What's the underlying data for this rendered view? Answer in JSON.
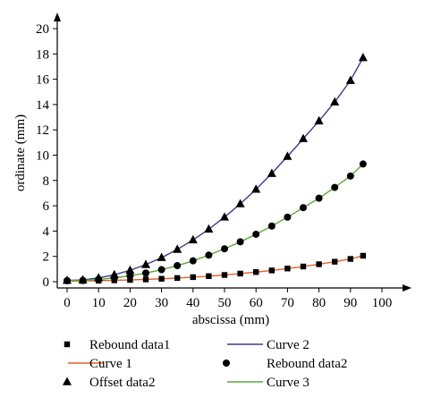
{
  "chart_data": {
    "type": "scatter",
    "xlabel": "abscissa (mm)",
    "ylabel": "ordinate (mm)",
    "xlim": [
      0,
      100
    ],
    "ylim": [
      0,
      20
    ],
    "xticks": [
      0,
      10,
      20,
      30,
      40,
      50,
      60,
      70,
      80,
      90,
      100
    ],
    "yticks": [
      0,
      2,
      4,
      6,
      8,
      10,
      12,
      14,
      16,
      18,
      20
    ],
    "grid": false,
    "legend_position": "bottom",
    "x": [
      0,
      5,
      10,
      15,
      20,
      25,
      30,
      35,
      40,
      45,
      50,
      55,
      60,
      65,
      70,
      75,
      80,
      85,
      90,
      94
    ],
    "series": [
      {
        "name": "Rebound data1",
        "kind": "points",
        "marker": "square",
        "color": "#000000",
        "values": [
          0.05,
          0.06,
          0.08,
          0.11,
          0.14,
          0.18,
          0.23,
          0.29,
          0.36,
          0.44,
          0.53,
          0.64,
          0.76,
          0.89,
          1.04,
          1.2,
          1.38,
          1.58,
          1.8,
          2.05
        ]
      },
      {
        "name": "Curve 1",
        "kind": "line",
        "color": "#e2622a",
        "values": [
          0.05,
          0.06,
          0.08,
          0.11,
          0.14,
          0.18,
          0.23,
          0.29,
          0.36,
          0.44,
          0.53,
          0.64,
          0.76,
          0.89,
          1.04,
          1.2,
          1.38,
          1.58,
          1.8,
          2.05
        ]
      },
      {
        "name": "Offset data2",
        "kind": "points",
        "marker": "triangle",
        "color": "#000000",
        "values": [
          0.1,
          0.14,
          0.3,
          0.55,
          0.9,
          1.35,
          1.9,
          2.55,
          3.3,
          4.15,
          5.1,
          6.15,
          7.3,
          8.55,
          9.9,
          11.3,
          12.7,
          14.2,
          15.9,
          17.7
        ]
      },
      {
        "name": "Curve 2",
        "kind": "line",
        "color": "#3b3b8f",
        "values": [
          0.1,
          0.14,
          0.3,
          0.55,
          0.9,
          1.35,
          1.9,
          2.55,
          3.3,
          4.15,
          5.1,
          6.15,
          7.3,
          8.55,
          9.9,
          11.3,
          12.7,
          14.2,
          15.9,
          17.7
        ]
      },
      {
        "name": "Rebound data2",
        "kind": "points",
        "marker": "circle",
        "color": "#000000",
        "values": [
          0.08,
          0.1,
          0.18,
          0.3,
          0.47,
          0.68,
          0.95,
          1.27,
          1.65,
          2.1,
          2.6,
          3.15,
          3.75,
          4.4,
          5.1,
          5.85,
          6.6,
          7.45,
          8.35,
          9.3
        ]
      },
      {
        "name": "Curve 3",
        "kind": "line",
        "color": "#5aaa3c",
        "values": [
          0.08,
          0.1,
          0.18,
          0.3,
          0.47,
          0.68,
          0.95,
          1.27,
          1.65,
          2.1,
          2.6,
          3.15,
          3.75,
          4.4,
          5.1,
          5.85,
          6.6,
          7.45,
          8.35,
          9.3
        ]
      }
    ],
    "legend_order": [
      0,
      3,
      1,
      4,
      2,
      5
    ]
  }
}
